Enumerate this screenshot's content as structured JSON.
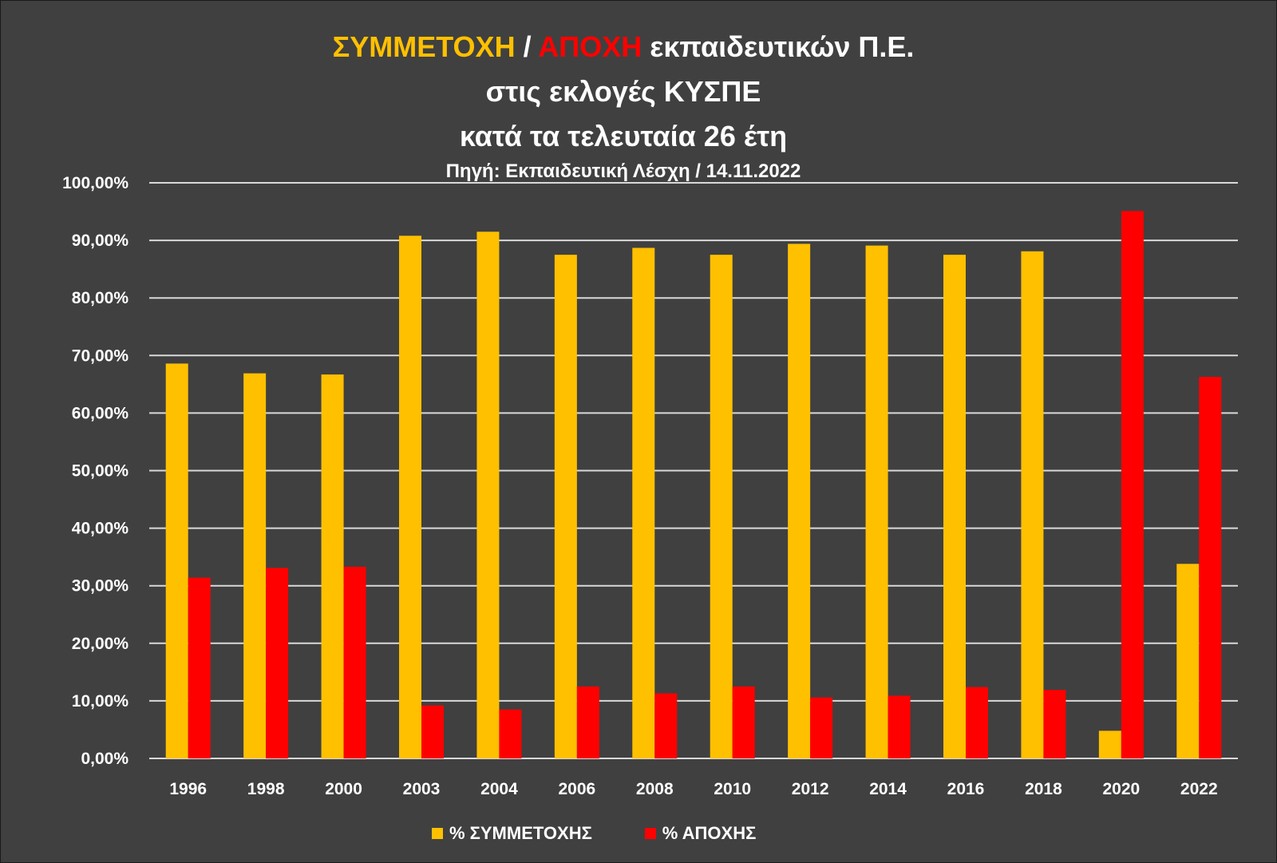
{
  "title": {
    "line1": [
      {
        "text": "ΣΥΜΜΕΤΟΧΗ",
        "color": "#FFC000"
      },
      {
        "text": " / ",
        "color": "#FFFFFF"
      },
      {
        "text": "ΑΠΟΧΗ",
        "color": "#FF0000"
      },
      {
        "text": " εκπαιδευτικών Π.Ε.",
        "color": "#FFFFFF"
      }
    ],
    "line2": "στις εκλογές ΚΥΣΠΕ",
    "line3": "κατά τα τελευταία 26 έτη",
    "subtitle": "Πηγή: Εκπαιδευτική Λέσχη / 14.11.2022"
  },
  "chart_data": {
    "type": "bar",
    "categories": [
      "1996",
      "1998",
      "2000",
      "2003",
      "2004",
      "2006",
      "2008",
      "2010",
      "2012",
      "2014",
      "2016",
      "2018",
      "2020",
      "2022"
    ],
    "series": [
      {
        "name": "% ΣΥΜΜΕΤΟΧΗΣ",
        "color": "#FFC000",
        "values": [
          68.6,
          66.9,
          66.7,
          90.8,
          91.5,
          87.5,
          88.7,
          87.5,
          89.4,
          89.1,
          87.5,
          88.1,
          4.8,
          33.8
        ]
      },
      {
        "name": "% ΑΠΟΧΗΣ",
        "color": "#FF0000",
        "values": [
          31.4,
          33.1,
          33.3,
          9.2,
          8.5,
          12.5,
          11.3,
          12.5,
          10.6,
          10.9,
          12.4,
          11.9,
          95.1,
          66.3
        ]
      }
    ],
    "ylim": [
      0,
      100
    ],
    "yticks": [
      "0,00%",
      "10,00%",
      "20,00%",
      "30,00%",
      "40,00%",
      "50,00%",
      "60,00%",
      "70,00%",
      "80,00%",
      "90,00%",
      "100,00%"
    ],
    "grid": true,
    "legend_position": "bottom"
  },
  "colors": {
    "background": "#404040",
    "gridline": "#d9d9d9",
    "text": "#FFFFFF",
    "participation": "#FFC000",
    "abstention": "#FF0000"
  }
}
